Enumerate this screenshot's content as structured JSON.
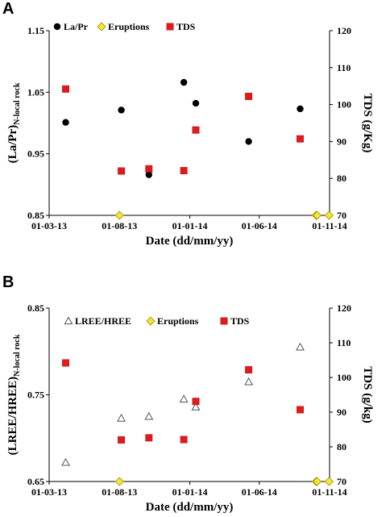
{
  "chart_data": [
    {
      "panel": "A",
      "type": "scatter",
      "xlabel": "Date (dd/mm/yy)",
      "ylabel_main": "(La/Pr)",
      "ylabel_sub": "N-local rock",
      "y2label": "TDS (g/Kg)",
      "x_range": [
        "2013-03-01",
        "2014-11-01"
      ],
      "x_ticks": [
        "01-03-13",
        "01-08-13",
        "01-01-14",
        "01-06-14",
        "01-11-14"
      ],
      "ylim": [
        0.85,
        1.15
      ],
      "y_ticks": [
        "0.85",
        "0.95",
        "1.05",
        "1.15"
      ],
      "y2lim": [
        70,
        120
      ],
      "y2_ticks": [
        "70",
        "80",
        "90",
        "100",
        "110",
        "120"
      ],
      "legend": "top-left",
      "series": [
        {
          "name": "La/Pr",
          "axis": "left",
          "marker": "circle",
          "color": "#000000",
          "x": [
            "2013-04-06",
            "2013-08-05",
            "2013-10-04",
            "2013-12-19",
            "2014-01-14",
            "2014-05-09",
            "2014-08-29"
          ],
          "y": [
            1.001,
            1.021,
            0.916,
            1.066,
            1.032,
            0.97,
            1.023
          ]
        },
        {
          "name": "Eruptions",
          "axis": "left",
          "marker": "diamond",
          "color": "#f2e535",
          "x": [
            "2013-08-01",
            "2014-10-03",
            "2014-10-05",
            "2014-10-31"
          ],
          "y": [
            0.85,
            0.85,
            0.85,
            0.85
          ]
        },
        {
          "name": "TDS",
          "axis": "right",
          "marker": "square",
          "color": "#e31a1c",
          "x": [
            "2013-04-06",
            "2013-08-05",
            "2013-10-04",
            "2013-12-19",
            "2014-01-14",
            "2014-05-09",
            "2014-08-29"
          ],
          "y": [
            104.2,
            82.0,
            82.6,
            82.1,
            93.1,
            102.2,
            90.7
          ]
        }
      ]
    },
    {
      "panel": "B",
      "type": "scatter",
      "xlabel": "Date (dd/mm/yy)",
      "ylabel_main": "(LREE/HREE)",
      "ylabel_sub": "N-local rock",
      "y2label": "TDS (g/kg)",
      "x_range": [
        "2013-03-01",
        "2014-11-01"
      ],
      "x_ticks": [
        "01-03-13",
        "01-08-13",
        "01-01-14",
        "01-06-14",
        "01-11-14"
      ],
      "ylim": [
        0.65,
        0.85
      ],
      "y_ticks": [
        "0.65",
        "0.75",
        "0.85"
      ],
      "y2lim": [
        70,
        120
      ],
      "y2_ticks": [
        "70",
        "80",
        "90",
        "100",
        "110",
        "120"
      ],
      "legend": "top",
      "series": [
        {
          "name": "LREE/HREE",
          "axis": "left",
          "marker": "triangle",
          "color": "#ffffff",
          "x": [
            "2013-04-06",
            "2013-08-05",
            "2013-10-04",
            "2013-12-19",
            "2014-01-14",
            "2014-05-09",
            "2014-08-29"
          ],
          "y": [
            0.672,
            0.723,
            0.725,
            0.745,
            0.736,
            0.765,
            0.805
          ]
        },
        {
          "name": "Eruptions",
          "axis": "left",
          "marker": "diamond",
          "color": "#f2e535",
          "x": [
            "2013-08-01",
            "2014-10-03",
            "2014-10-05",
            "2014-10-31"
          ],
          "y": [
            0.65,
            0.65,
            0.65,
            0.65
          ]
        },
        {
          "name": "TDS",
          "axis": "right",
          "marker": "square",
          "color": "#e31a1c",
          "x": [
            "2013-04-06",
            "2013-08-05",
            "2013-10-04",
            "2013-12-19",
            "2014-01-14",
            "2014-05-09",
            "2014-08-29"
          ],
          "y": [
            104.2,
            82.0,
            82.6,
            82.1,
            93.1,
            102.2,
            90.7
          ]
        }
      ]
    }
  ]
}
